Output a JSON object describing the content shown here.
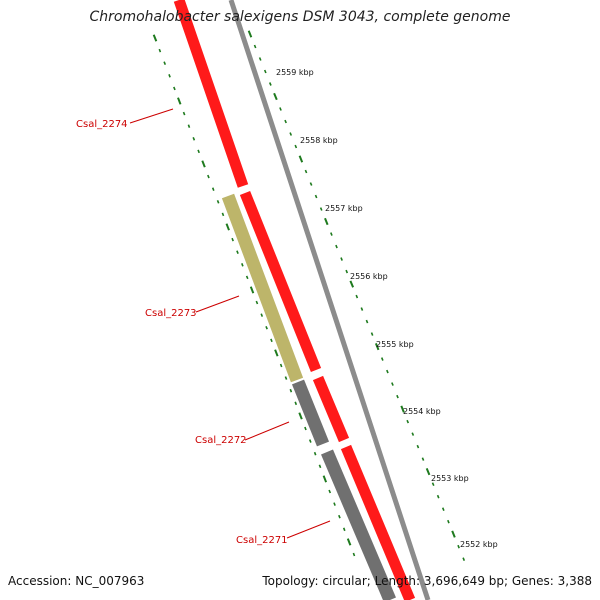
{
  "title": "Chromohalobacter salexigens DSM 3043, complete genome",
  "accession": "Accession: NC_007963",
  "topology": "Topology: circular; Length: 3,696,649 bp; Genes: 3,388",
  "colors": {
    "cds_forward": "#ff1a1a",
    "cds_backbone": "#8a8a8a",
    "gene_olive": "#bdb56a",
    "gene_gray": "#707070",
    "tick": "#1e7a1e",
    "gene_label": "#cc0000",
    "kbp_label": "#111111"
  },
  "kbp_ticks": [
    "2559 kbp",
    "2558 kbp",
    "2557 kbp",
    "2556 kbp",
    "2555 kbp",
    "2554 kbp",
    "2553 kbp",
    "2552 kbp"
  ],
  "genes": [
    {
      "id": "Csal_2274"
    },
    {
      "id": "Csal_2273"
    },
    {
      "id": "Csal_2272"
    },
    {
      "id": "Csal_2271"
    }
  ]
}
